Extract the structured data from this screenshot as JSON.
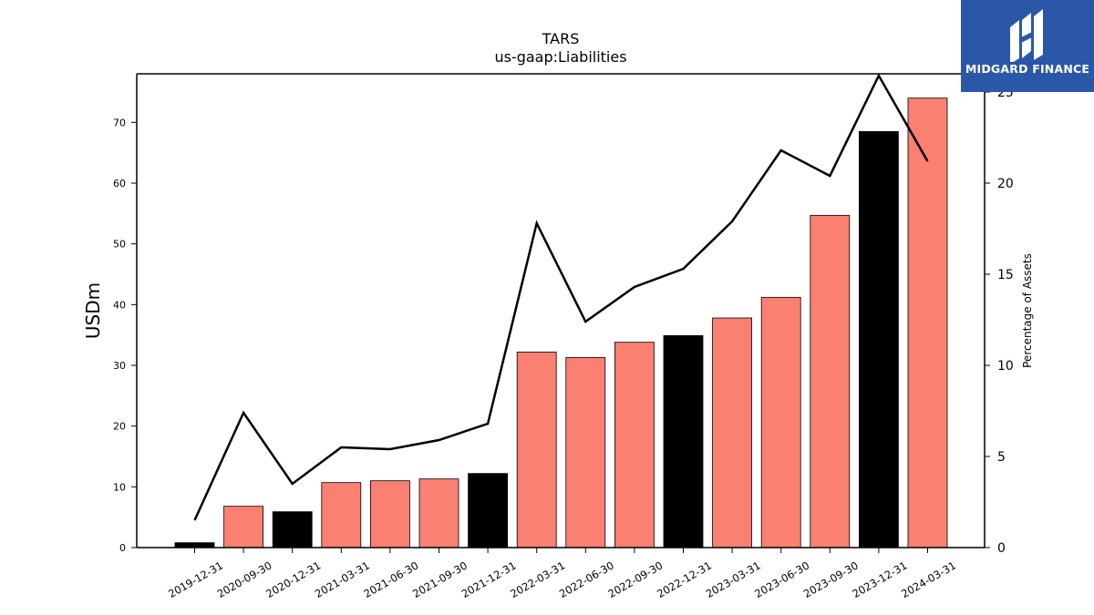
{
  "chart_data": {
    "type": "bar",
    "title": "TARS",
    "subtitle": "us-gaap:Liabilities",
    "ylabel": "USDm",
    "y2label": "Percentage of Assets",
    "ylim": [
      0,
      78
    ],
    "y2lim": [
      0,
      26
    ],
    "yticks": [
      0,
      10,
      20,
      30,
      40,
      50,
      60,
      70
    ],
    "y2ticks": [
      0,
      5,
      10,
      15,
      20,
      25
    ],
    "categories": [
      "2019-12-31",
      "2020-09-30",
      "2020-12-31",
      "2021-03-31",
      "2021-06-30",
      "2021-09-30",
      "2021-12-31",
      "2022-03-31",
      "2022-06-30",
      "2022-09-30",
      "2022-12-31",
      "2023-03-31",
      "2023-06-30",
      "2023-09-30",
      "2023-12-31",
      "2024-03-31"
    ],
    "series": [
      {
        "type": "bar",
        "axis": "left",
        "values": [
          0.8,
          6.8,
          5.9,
          10.7,
          11.0,
          11.3,
          12.2,
          32.2,
          31.3,
          33.8,
          34.9,
          37.8,
          41.2,
          54.7,
          68.5,
          74.0
        ],
        "colors": [
          "#000000",
          "#fa8072",
          "#000000",
          "#fa8072",
          "#fa8072",
          "#fa8072",
          "#000000",
          "#fa8072",
          "#fa8072",
          "#fa8072",
          "#000000",
          "#fa8072",
          "#fa8072",
          "#fa8072",
          "#000000",
          "#fa8072"
        ]
      },
      {
        "type": "line",
        "axis": "right",
        "color": "#000000",
        "values": [
          1.5,
          7.4,
          3.5,
          5.5,
          5.4,
          5.9,
          6.8,
          17.8,
          12.4,
          14.3,
          15.3,
          17.9,
          21.8,
          20.4,
          25.9,
          21.2
        ]
      }
    ],
    "grid": false
  },
  "logo": {
    "text": "MIDGARD FINANCE",
    "icon": "midgard-logo-icon",
    "background": "#2b57a8"
  }
}
